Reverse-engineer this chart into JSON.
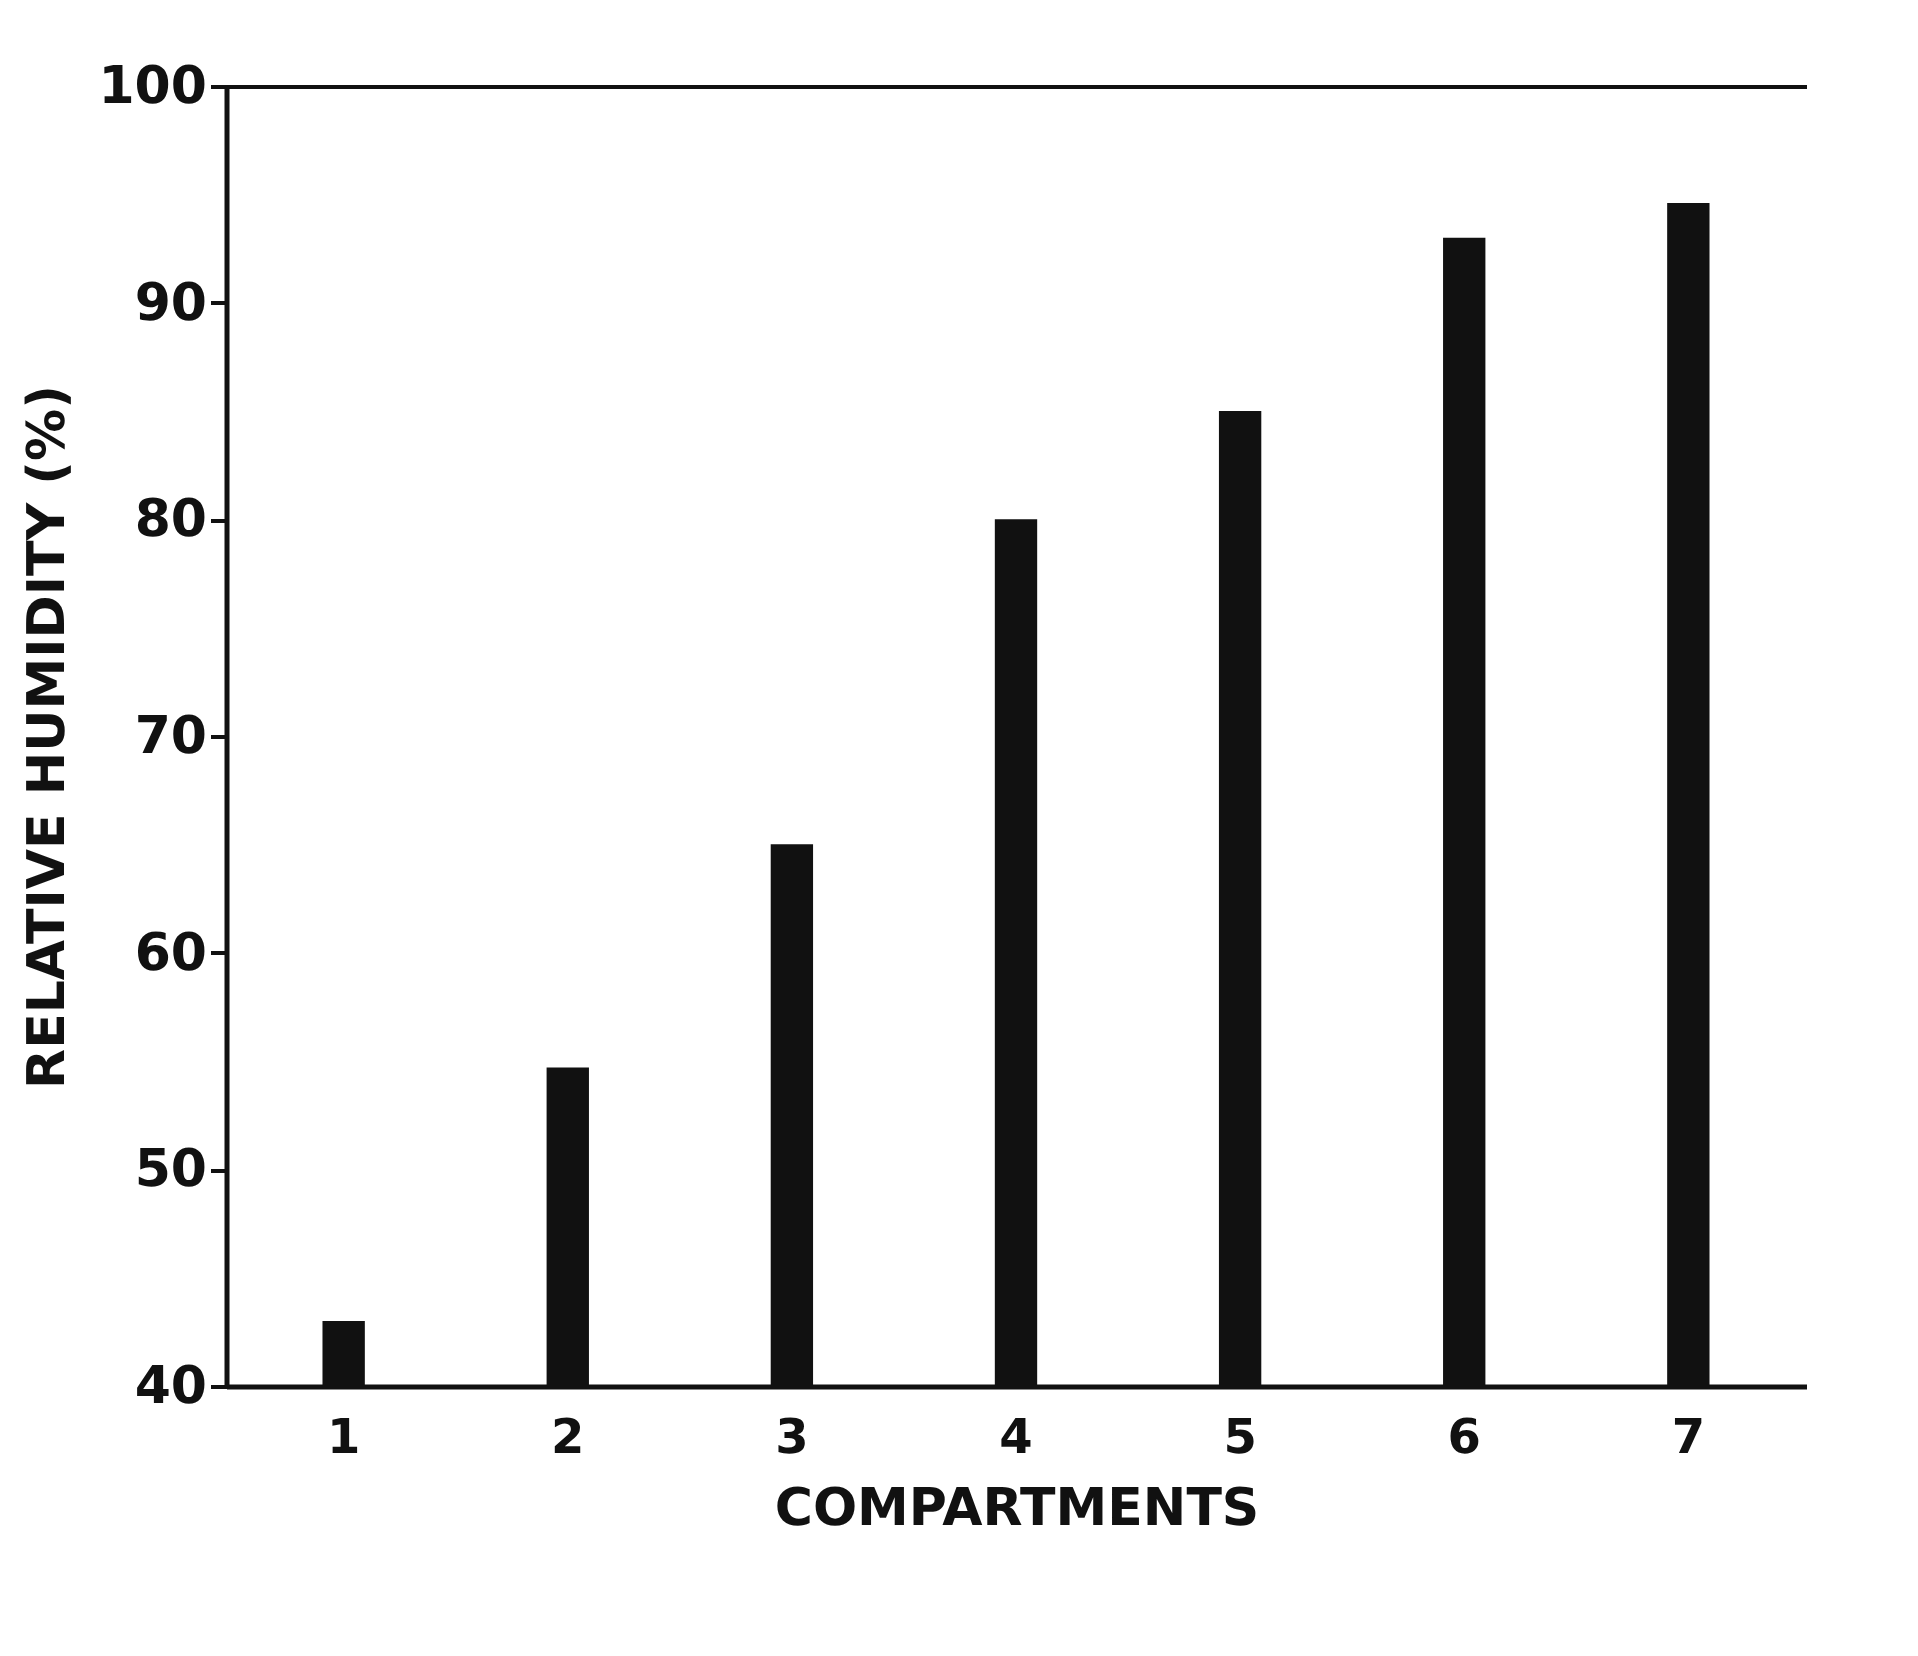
{
  "chart_data": {
    "type": "bar",
    "xlabel": "COMPARTMENTS",
    "ylabel": "RELATIVE HUMIDITY (%)",
    "categories": [
      "1",
      "2",
      "3",
      "4",
      "5",
      "6",
      "7"
    ],
    "values": [
      43,
      54.7,
      65,
      80,
      85,
      93,
      94.6
    ],
    "color": "#111111",
    "ylim": [
      40,
      100
    ],
    "yticks": [
      40,
      50,
      60,
      70,
      80,
      90,
      100
    ],
    "grid": false
  }
}
